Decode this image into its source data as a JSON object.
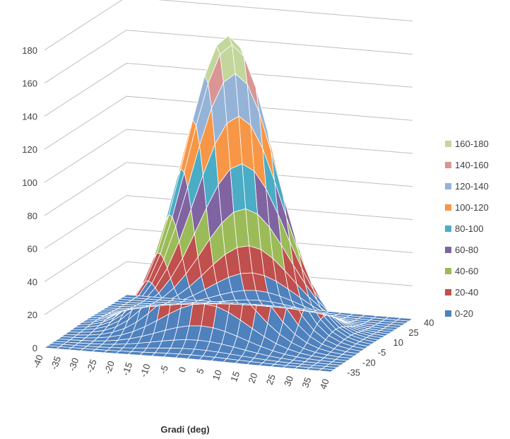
{
  "chart_data": {
    "type": "surface",
    "title": "",
    "xlabel": "Gradi (deg)",
    "ylabel": "",
    "zlabel": "",
    "x": [
      -40,
      -35,
      -30,
      -25,
      -20,
      -15,
      -10,
      -5,
      0,
      5,
      10,
      15,
      20,
      25,
      30,
      35,
      40
    ],
    "y_tick_labels": [
      "-35",
      "-20",
      "-5",
      "10",
      "25",
      "40"
    ],
    "z_tick_labels": [
      "0",
      "20",
      "40",
      "60",
      "80",
      "100",
      "120",
      "140",
      "160",
      "180"
    ],
    "zlim": [
      0,
      180
    ],
    "peak": {
      "x": 0,
      "y": 0,
      "z": 180
    },
    "surface_model": "gaussian-like peak centred at (0,0)",
    "bands": [
      {
        "label": "0-20",
        "color": "#4f81bd"
      },
      {
        "label": "20-40",
        "color": "#c0504d"
      },
      {
        "label": "40-60",
        "color": "#9bbb59"
      },
      {
        "label": "60-80",
        "color": "#8064a2"
      },
      {
        "label": "80-100",
        "color": "#4bacc6"
      },
      {
        "label": "100-120",
        "color": "#f79646"
      },
      {
        "label": "120-140",
        "color": "#95b3d7"
      },
      {
        "label": "140-160",
        "color": "#da9694"
      },
      {
        "label": "160-180",
        "color": "#c3d69b"
      }
    ],
    "legend_position": "right",
    "gridlines": true
  }
}
